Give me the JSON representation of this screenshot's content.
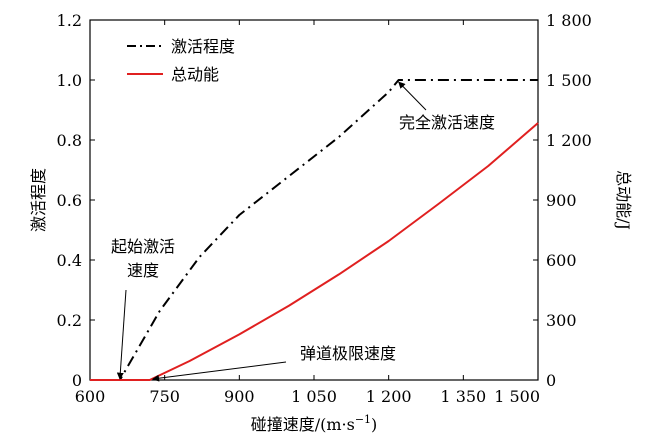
{
  "chart_data": {
    "type": "line",
    "xlabel": "碰撞速度/(m·s",
    "xlabel_sup": "−1",
    "xlabel_close": ")",
    "ylabel_left": "激活程度",
    "ylabel_right": "总动能/J",
    "xlim": [
      600,
      1500
    ],
    "ylim_left": [
      0,
      1.2
    ],
    "ylim_right": [
      0,
      1800
    ],
    "x_ticks": [
      600,
      750,
      900,
      1050,
      1200,
      1350,
      1500
    ],
    "x_tick_labels": [
      "600",
      "750",
      "900",
      "1 050",
      "1 200",
      "1 350",
      "1 500"
    ],
    "y_left_ticks": [
      0,
      0.2,
      0.4,
      0.6,
      0.8,
      1.0,
      1.2
    ],
    "y_left_tick_labels": [
      "0",
      "0.2",
      "0.4",
      "0.6",
      "0.8",
      "1.0",
      "1.2"
    ],
    "y_right_ticks": [
      0,
      300,
      600,
      900,
      1200,
      1500,
      1800
    ],
    "y_right_tick_labels": [
      "0",
      "300",
      "600",
      "900",
      "1 200",
      "1 500",
      "1 800"
    ],
    "grid": false,
    "legend_position": "top-left",
    "series": [
      {
        "name": "激活程度",
        "axis": "left",
        "style": "dash-dot",
        "color": "#000000",
        "x": [
          600,
          660,
          740,
          820,
          900,
          1000,
          1100,
          1200,
          1220,
          1500
        ],
        "y": [
          0,
          0,
          0.23,
          0.41,
          0.55,
          0.68,
          0.81,
          0.96,
          1.0,
          1.0
        ]
      },
      {
        "name": "总动能",
        "axis": "right",
        "style": "solid",
        "color": "#e02020",
        "x": [
          600,
          700,
          720,
          800,
          900,
          1000,
          1100,
          1200,
          1300,
          1400,
          1500
        ],
        "y": [
          0,
          0,
          0,
          95,
          228,
          372,
          528,
          695,
          880,
          1070,
          1285
        ]
      }
    ],
    "annotations": [
      {
        "lines": [
          "起始激活",
          "速度"
        ],
        "x": 660,
        "y": 0,
        "axis": "left"
      },
      {
        "lines": [
          "弹道极限速度"
        ],
        "x": 720,
        "y": 0,
        "axis": "left"
      },
      {
        "lines": [
          "完全激活速度"
        ],
        "x": 1220,
        "y": 1.0,
        "axis": "left"
      }
    ]
  }
}
